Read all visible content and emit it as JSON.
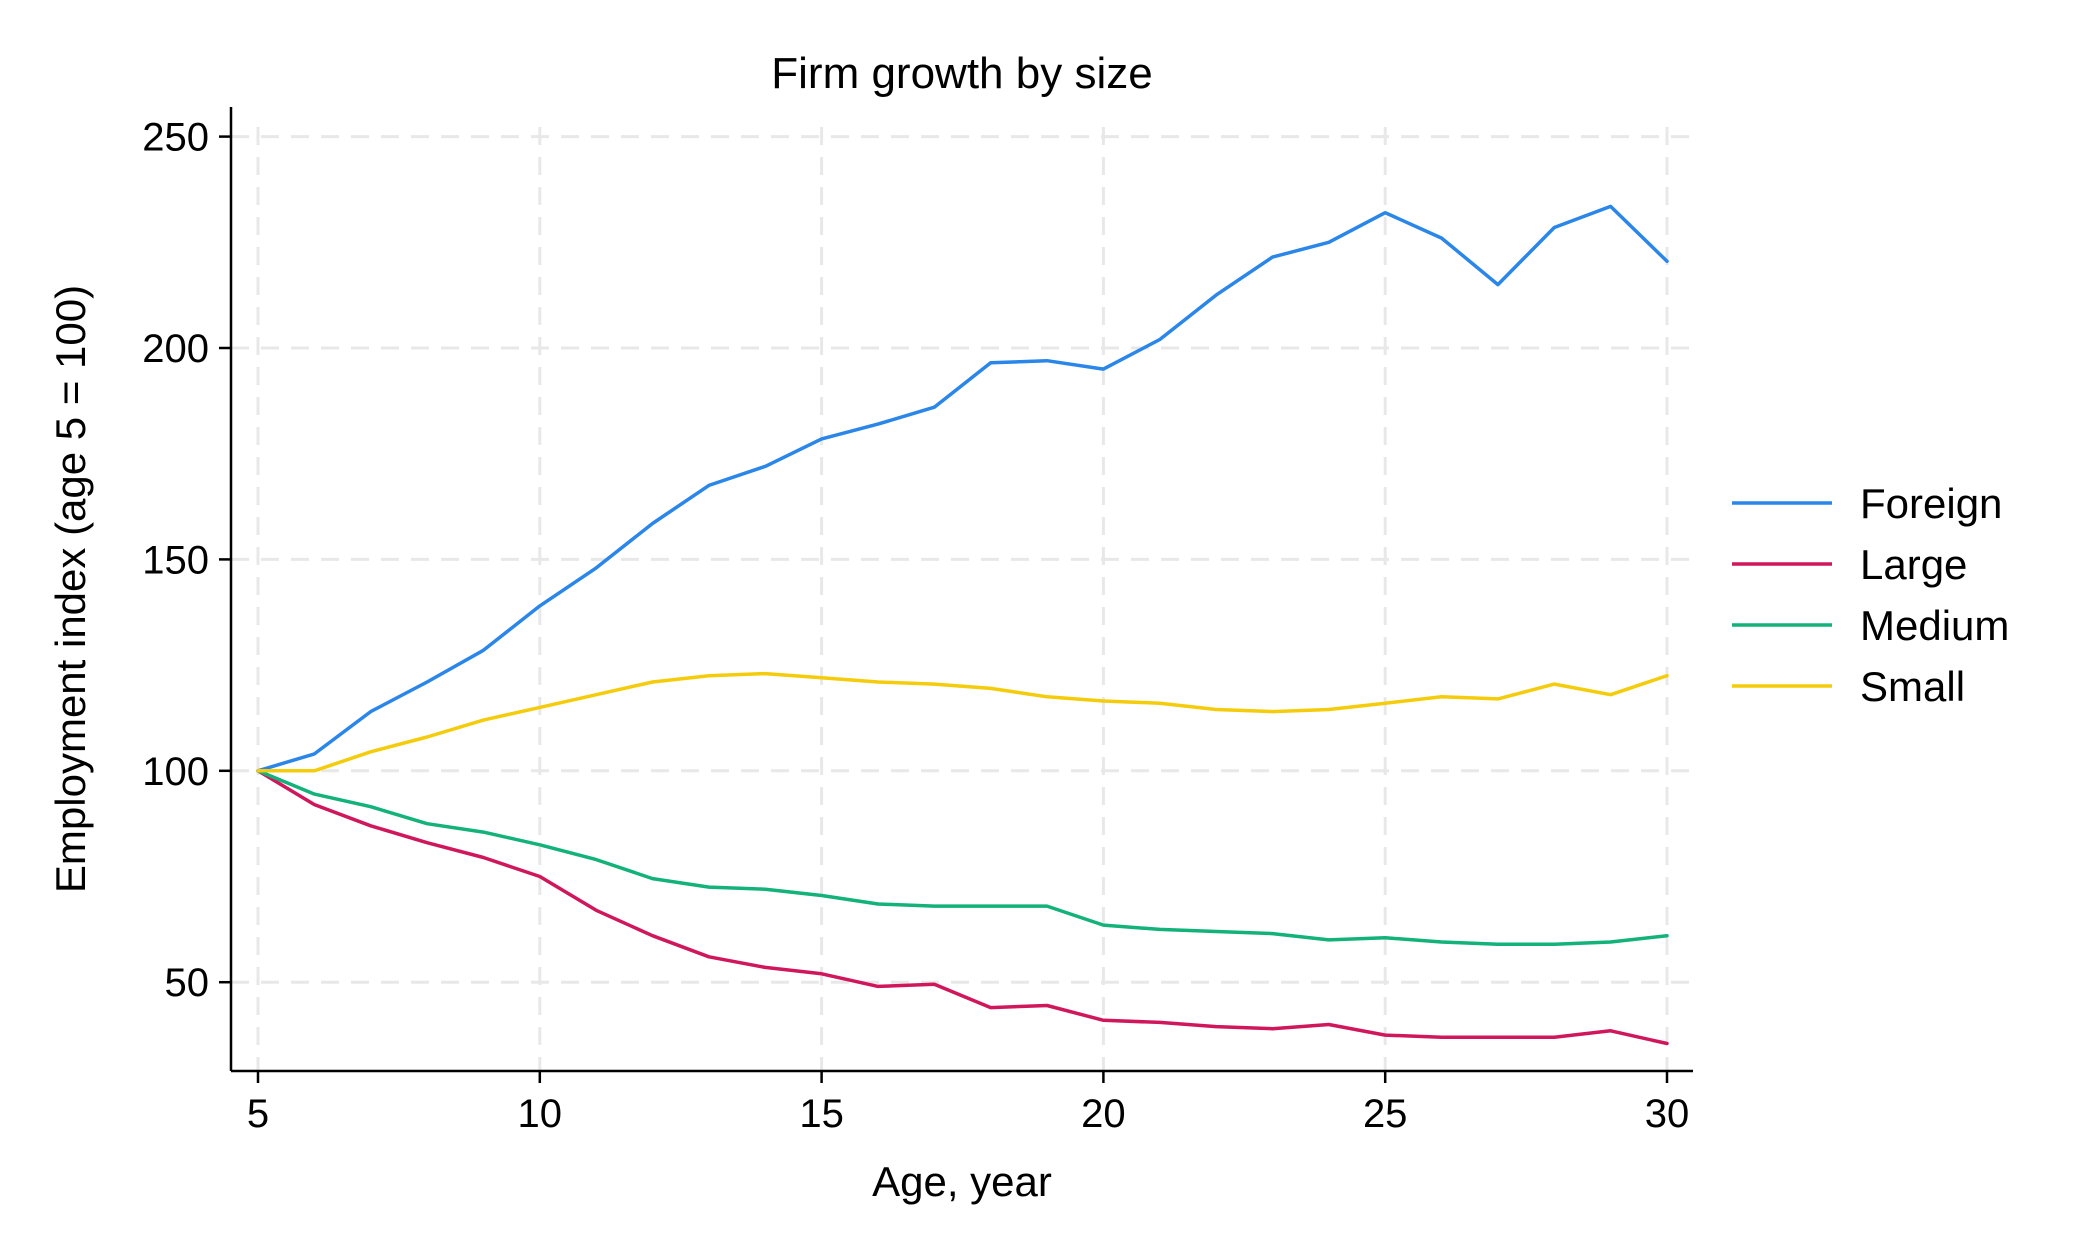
{
  "chart_data": {
    "type": "line",
    "title": "Firm growth by size",
    "xlabel": "Age, year",
    "ylabel": "Employment index (age 5 = 100)",
    "xlim": [
      5,
      30
    ],
    "ylim": [
      29,
      257
    ],
    "xticks": [
      5,
      10,
      15,
      20,
      25,
      30
    ],
    "yticks": [
      50,
      100,
      150,
      200,
      250
    ],
    "grid": true,
    "legend_position": "right",
    "x": [
      5,
      6,
      7,
      8,
      9,
      10,
      11,
      12,
      13,
      14,
      15,
      16,
      17,
      18,
      19,
      20,
      21,
      22,
      23,
      24,
      25,
      26,
      27,
      28,
      29,
      30
    ],
    "series": [
      {
        "name": "Foreign",
        "color": "#2a86e8",
        "values": [
          100,
          104,
          114,
          121,
          128.5,
          139,
          148,
          158.5,
          167.5,
          172,
          178.5,
          182,
          186,
          196.5,
          197,
          195,
          202,
          212.5,
          221.5,
          225,
          232,
          226,
          215,
          228.5,
          233.5,
          220.5
        ]
      },
      {
        "name": "Large",
        "color": "#d0175c",
        "values": [
          100,
          92,
          87,
          83,
          79.5,
          75,
          67,
          61,
          56,
          53.5,
          52,
          49,
          49.5,
          44,
          44.5,
          41,
          40.5,
          39.5,
          39,
          40,
          37.5,
          37,
          37,
          37,
          38.5,
          35.5
        ]
      },
      {
        "name": "Medium",
        "color": "#12b27a",
        "values": [
          100,
          94.5,
          91.5,
          87.5,
          85.5,
          82.5,
          79,
          74.5,
          72.5,
          72,
          70.5,
          68.5,
          68,
          68,
          68,
          63.5,
          62.5,
          62,
          61.5,
          60,
          60.5,
          59.5,
          59,
          59,
          59.5,
          61
        ]
      },
      {
        "name": "Small",
        "color": "#f5cc0b",
        "values": [
          100,
          100,
          104.5,
          108,
          112,
          115,
          118,
          121,
          122.5,
          123,
          122,
          121,
          120.5,
          119.5,
          117.5,
          116.5,
          116,
          114.5,
          114,
          114.5,
          116,
          117.5,
          117,
          120.5,
          118,
          122.5
        ]
      }
    ]
  }
}
